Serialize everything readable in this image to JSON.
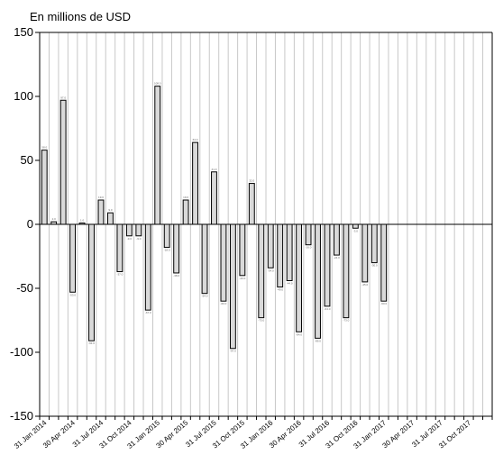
{
  "chart_data": {
    "type": "bar",
    "title": "",
    "ylabel": "En millions de USD",
    "xlabel": "",
    "ylim": [
      -150,
      150
    ],
    "yticks": [
      150,
      100,
      50,
      0,
      -50,
      -100,
      -150
    ],
    "ytick_labels": [
      "150",
      "100",
      "50",
      "0",
      "-50",
      "-100",
      "-150"
    ],
    "grid": "vertical",
    "bar_color": "#d9d9d9",
    "x_tick_labels": [
      "31 Jan 2014",
      "30 Apr 2014",
      "31 Jul 2014",
      "31 Oct 2014",
      "31 Jan 2015",
      "30 Apr 2015",
      "31 Jul 2015",
      "31 Oct 2015",
      "31 Jan 2016",
      "30 Apr 2016",
      "31 Jul 2016",
      "31 Oct 2016",
      "31 Jan 2017",
      "30 Apr 2017",
      "31 Jul 2017",
      "31 Oct 2017"
    ],
    "categories": [
      "Jan 2014",
      "Feb 2014",
      "Mar 2014",
      "Apr 2014",
      "May 2014",
      "Jun 2014",
      "Jul 2014",
      "Aug 2014",
      "Sep 2014",
      "Oct 2014",
      "Nov 2014",
      "Dec 2014",
      "Jan 2015",
      "Feb 2015",
      "Mar 2015",
      "Apr 2015",
      "May 2015",
      "Jun 2015",
      "Jul 2015",
      "Aug 2015",
      "Sep 2015",
      "Oct 2015",
      "Nov 2015",
      "Dec 2015",
      "Jan 2016",
      "Feb 2016",
      "Mar 2016",
      "Apr 2016",
      "May 2016",
      "Jun 2016",
      "Jul 2016",
      "Aug 2016",
      "Sep 2016",
      "Oct 2016",
      "Nov 2016",
      "Dec 2016",
      "Jan 2017",
      "Feb 2017",
      "Mar 2017",
      "Apr 2017",
      "May 2017",
      "Jun 2017",
      "Jul 2017",
      "Aug 2017",
      "Sep 2017",
      "Oct 2017",
      "Nov 2017",
      "Dec 2017"
    ],
    "values": [
      58,
      2,
      97,
      -53,
      1,
      -91,
      19,
      9,
      -37,
      -9,
      -9,
      -67,
      108,
      -18,
      -38,
      19,
      64,
      -54,
      41,
      -60,
      -97,
      -40,
      32,
      -73,
      -34,
      -49,
      -44,
      -84,
      -16,
      -89,
      -64,
      -24,
      -73,
      -3,
      -45,
      -30,
      -60,
      null,
      null,
      null,
      null,
      null,
      null,
      null,
      null,
      null,
      null,
      null
    ]
  }
}
